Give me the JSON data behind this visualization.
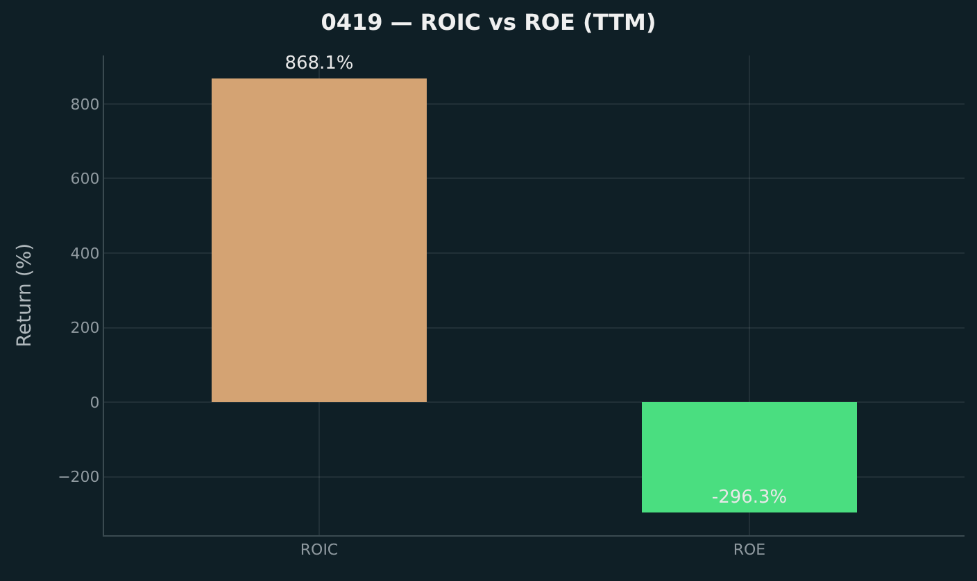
{
  "chart_data": {
    "type": "bar",
    "title": "0419 — ROIC vs ROE (TTM)",
    "ylabel": "Return (%)",
    "categories": [
      "ROIC",
      "ROE"
    ],
    "values": [
      868.1,
      -296.3
    ],
    "colors": [
      "#d4a373",
      "#4ade80"
    ],
    "value_labels": [
      "868.1%",
      "-296.3%"
    ],
    "ylim": [
      -357,
      930
    ],
    "yticks": [
      {
        "value": -200,
        "label": "−200"
      },
      0,
      200,
      400,
      600,
      800
    ],
    "grid": true,
    "legend": false
  }
}
